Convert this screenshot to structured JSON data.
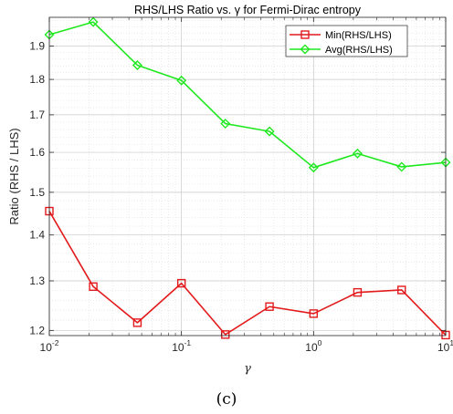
{
  "chart_data": {
    "type": "line",
    "title": "RHS/LHS Ratio vs. γ for Fermi-Dirac entropy",
    "xlabel": "γ",
    "ylabel": "Ratio (RHS / LHS)",
    "xscale": "log",
    "yscale": "log",
    "xlim": [
      0.01,
      10
    ],
    "ylim": [
      1.19,
      1.99
    ],
    "grid": true,
    "legend_position": "top-right",
    "x": [
      0.01,
      0.0215,
      0.0464,
      0.1,
      0.215,
      0.464,
      1,
      2.15,
      4.64,
      10
    ],
    "series": [
      {
        "name": "Min(RHS/LHS)",
        "color": "#e31a1c",
        "marker": "square",
        "values": [
          1.455,
          1.288,
          1.215,
          1.295,
          1.192,
          1.247,
          1.233,
          1.276,
          1.281,
          1.191
        ]
      },
      {
        "name": "Avg(RHS/LHS)",
        "color": "#1ee81e",
        "marker": "diamond",
        "values": [
          1.935,
          1.975,
          1.842,
          1.797,
          1.676,
          1.655,
          1.561,
          1.597,
          1.563,
          1.574
        ]
      }
    ],
    "x_ticks": [
      {
        "value": 0.01,
        "base": "10",
        "exp": "-2"
      },
      {
        "value": 0.1,
        "base": "10",
        "exp": "-1"
      },
      {
        "value": 1,
        "base": "10",
        "exp": "0"
      },
      {
        "value": 10,
        "base": "10",
        "exp": "1"
      }
    ],
    "y_ticks": [
      {
        "value": 1.2,
        "label": "1.2"
      },
      {
        "value": 1.3,
        "label": "1.3"
      },
      {
        "value": 1.4,
        "label": "1.4"
      },
      {
        "value": 1.5,
        "label": "1.5"
      },
      {
        "value": 1.6,
        "label": "1.6"
      },
      {
        "value": 1.7,
        "label": "1.7"
      },
      {
        "value": 1.8,
        "label": "1.8"
      },
      {
        "value": 1.9,
        "label": "1.9"
      }
    ]
  },
  "caption": "(c)"
}
